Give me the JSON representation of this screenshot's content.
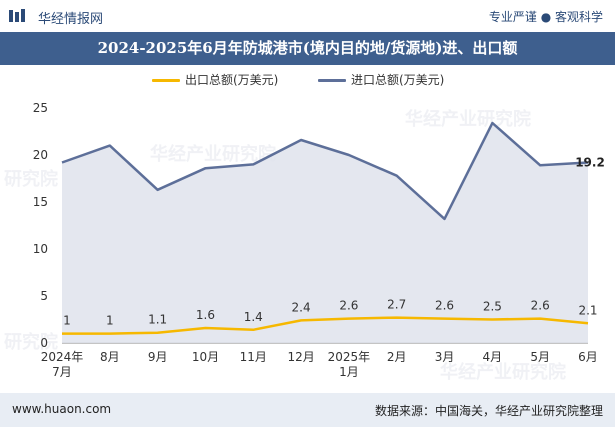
{
  "header": {
    "brand": "华经情报网",
    "tagline": "专业严谨 ● 客观科学"
  },
  "title": "2024-2025年6月年防城港市(境内目的地/货源地)进、出口额",
  "watermarks": [
    "华经产业研究院",
    "华经产业研究院",
    "华经产业研究院",
    "研究院",
    "研究院"
  ],
  "footer": {
    "url": "www.huaon.com",
    "source": "数据来源：中国海关，华经产业研究院整理"
  },
  "colors": {
    "export": "#f6b800",
    "import": "#5d6f99",
    "fill": "#dfe3ec"
  },
  "chart_data": {
    "type": "line",
    "categories": [
      "2024年\n7月",
      "8月",
      "9月",
      "10月",
      "11月",
      "12月",
      "2025年\n1月",
      "2月",
      "3月",
      "4月",
      "5月",
      "6月"
    ],
    "series": [
      {
        "name": "出口总额(万美元)",
        "values": [
          1,
          1,
          1.1,
          1.6,
          1.4,
          2.4,
          2.6,
          2.7,
          2.6,
          2.5,
          2.6,
          2.1
        ],
        "labels": [
          "1",
          "1",
          "1.1",
          "1.6",
          "1.4",
          "2.4",
          "2.6",
          "2.7",
          "2.6",
          "2.5",
          "2.6",
          "2.1"
        ]
      },
      {
        "name": "进口总额(万美元)",
        "values": [
          19.2,
          21,
          16.3,
          18.6,
          19,
          21.6,
          20,
          17.8,
          13.2,
          23.4,
          18.9,
          19.2
        ],
        "last_label": "19.2"
      }
    ],
    "yticks": [
      "0",
      "5",
      "10",
      "15",
      "20",
      "25"
    ],
    "ylim": [
      0,
      25
    ],
    "xlabel": "",
    "ylabel": ""
  }
}
